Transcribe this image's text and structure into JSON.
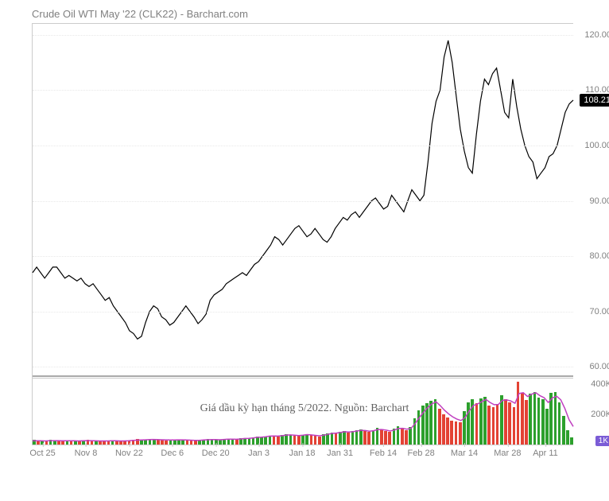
{
  "title": "Crude Oil WTI May '22 (CLK22) - Barchart.com",
  "caption": "Giá dầu kỳ hạn tháng 5/2022. Nguồn: Barchart",
  "price_chart": {
    "type": "line",
    "line_color": "#000000",
    "line_width": 1.2,
    "background_color": "#ffffff",
    "grid_color": "#e8e8e8",
    "ylim": [
      58,
      122
    ],
    "yticks": [
      60,
      70,
      80,
      90,
      100,
      110,
      120
    ],
    "current_price": 108.21,
    "current_price_badge_bg": "#000000",
    "current_price_badge_fg": "#ffffff",
    "data": [
      77,
      78,
      77,
      76,
      77,
      78,
      78,
      77,
      76,
      76.5,
      76,
      75.5,
      76,
      75,
      74.5,
      75,
      74,
      73,
      72,
      72.5,
      71,
      70,
      69,
      68,
      66.5,
      66,
      65,
      65.5,
      68,
      70,
      71,
      70.5,
      69,
      68.5,
      67.5,
      68,
      69,
      70,
      71,
      70,
      69,
      67.8,
      68.5,
      69.5,
      72,
      73,
      73.5,
      74,
      75,
      75.5,
      76,
      76.5,
      77,
      76.5,
      77.5,
      78.5,
      79,
      80,
      81,
      82,
      83.5,
      83,
      82,
      83,
      84,
      85,
      85.5,
      84.5,
      83.5,
      84,
      85,
      84,
      83,
      82.5,
      83.5,
      85,
      86,
      87,
      86.5,
      87.5,
      88,
      87,
      88,
      89,
      90,
      90.5,
      89.5,
      88.5,
      89,
      91,
      90,
      89,
      88,
      90,
      92,
      91,
      90,
      91,
      97,
      104,
      108,
      110,
      116,
      119,
      115,
      109,
      103,
      99,
      96,
      95,
      102,
      108,
      112,
      111,
      113,
      114,
      110,
      106,
      105,
      112,
      107,
      103,
      100,
      98,
      97,
      94,
      95,
      96,
      98,
      98.5,
      100,
      103,
      106,
      107.5,
      108.21
    ]
  },
  "separator_y": 58.5,
  "separator_color": "#aaaaaa",
  "volume_chart": {
    "type": "bar-with-line",
    "ylim": [
      0,
      450
    ],
    "yticks": [
      200,
      400
    ],
    "ytick_suffix": "K",
    "up_color": "#2ca02c",
    "down_color": "#e34234",
    "line_color": "#c040c0",
    "line_width": 1.5,
    "current_vol_label": "1K",
    "current_vol_badge_bg": "#7b5cd6",
    "bars": [
      {
        "v": 30,
        "c": "u"
      },
      {
        "v": 28,
        "c": "d"
      },
      {
        "v": 25,
        "c": "u"
      },
      {
        "v": 22,
        "c": "d"
      },
      {
        "v": 30,
        "c": "u"
      },
      {
        "v": 27,
        "c": "u"
      },
      {
        "v": 25,
        "c": "d"
      },
      {
        "v": 24,
        "c": "d"
      },
      {
        "v": 26,
        "c": "u"
      },
      {
        "v": 23,
        "c": "d"
      },
      {
        "v": 25,
        "c": "u"
      },
      {
        "v": 22,
        "c": "d"
      },
      {
        "v": 28,
        "c": "u"
      },
      {
        "v": 30,
        "c": "d"
      },
      {
        "v": 26,
        "c": "d"
      },
      {
        "v": 24,
        "c": "u"
      },
      {
        "v": 22,
        "c": "d"
      },
      {
        "v": 25,
        "c": "d"
      },
      {
        "v": 23,
        "c": "d"
      },
      {
        "v": 27,
        "c": "u"
      },
      {
        "v": 25,
        "c": "d"
      },
      {
        "v": 24,
        "c": "d"
      },
      {
        "v": 22,
        "c": "d"
      },
      {
        "v": 28,
        "c": "d"
      },
      {
        "v": 32,
        "c": "d"
      },
      {
        "v": 35,
        "c": "d"
      },
      {
        "v": 30,
        "c": "u"
      },
      {
        "v": 33,
        "c": "u"
      },
      {
        "v": 38,
        "c": "u"
      },
      {
        "v": 35,
        "c": "u"
      },
      {
        "v": 32,
        "c": "d"
      },
      {
        "v": 30,
        "c": "d"
      },
      {
        "v": 28,
        "c": "d"
      },
      {
        "v": 26,
        "c": "u"
      },
      {
        "v": 30,
        "c": "u"
      },
      {
        "v": 33,
        "c": "u"
      },
      {
        "v": 31,
        "c": "u"
      },
      {
        "v": 28,
        "c": "d"
      },
      {
        "v": 26,
        "c": "d"
      },
      {
        "v": 24,
        "c": "d"
      },
      {
        "v": 28,
        "c": "u"
      },
      {
        "v": 32,
        "c": "u"
      },
      {
        "v": 36,
        "c": "u"
      },
      {
        "v": 34,
        "c": "u"
      },
      {
        "v": 32,
        "c": "u"
      },
      {
        "v": 30,
        "c": "u"
      },
      {
        "v": 35,
        "c": "u"
      },
      {
        "v": 38,
        "c": "u"
      },
      {
        "v": 36,
        "c": "u"
      },
      {
        "v": 34,
        "c": "d"
      },
      {
        "v": 40,
        "c": "u"
      },
      {
        "v": 45,
        "c": "u"
      },
      {
        "v": 42,
        "c": "u"
      },
      {
        "v": 48,
        "c": "u"
      },
      {
        "v": 52,
        "c": "u"
      },
      {
        "v": 50,
        "c": "u"
      },
      {
        "v": 55,
        "c": "u"
      },
      {
        "v": 60,
        "c": "u"
      },
      {
        "v": 58,
        "c": "d"
      },
      {
        "v": 55,
        "c": "d"
      },
      {
        "v": 62,
        "c": "u"
      },
      {
        "v": 68,
        "c": "u"
      },
      {
        "v": 65,
        "c": "u"
      },
      {
        "v": 60,
        "c": "d"
      },
      {
        "v": 58,
        "c": "d"
      },
      {
        "v": 65,
        "c": "u"
      },
      {
        "v": 70,
        "c": "u"
      },
      {
        "v": 62,
        "c": "d"
      },
      {
        "v": 58,
        "c": "d"
      },
      {
        "v": 55,
        "c": "d"
      },
      {
        "v": 68,
        "c": "u"
      },
      {
        "v": 75,
        "c": "u"
      },
      {
        "v": 80,
        "c": "u"
      },
      {
        "v": 78,
        "c": "d"
      },
      {
        "v": 85,
        "c": "u"
      },
      {
        "v": 90,
        "c": "u"
      },
      {
        "v": 82,
        "c": "d"
      },
      {
        "v": 88,
        "c": "u"
      },
      {
        "v": 95,
        "c": "u"
      },
      {
        "v": 100,
        "c": "u"
      },
      {
        "v": 92,
        "c": "d"
      },
      {
        "v": 85,
        "c": "d"
      },
      {
        "v": 95,
        "c": "u"
      },
      {
        "v": 110,
        "c": "u"
      },
      {
        "v": 100,
        "c": "d"
      },
      {
        "v": 90,
        "c": "d"
      },
      {
        "v": 85,
        "c": "d"
      },
      {
        "v": 105,
        "c": "u"
      },
      {
        "v": 120,
        "c": "u"
      },
      {
        "v": 110,
        "c": "d"
      },
      {
        "v": 95,
        "c": "d"
      },
      {
        "v": 115,
        "c": "u"
      },
      {
        "v": 175,
        "c": "u"
      },
      {
        "v": 230,
        "c": "u"
      },
      {
        "v": 260,
        "c": "u"
      },
      {
        "v": 275,
        "c": "u"
      },
      {
        "v": 290,
        "c": "u"
      },
      {
        "v": 300,
        "c": "u"
      },
      {
        "v": 240,
        "c": "d"
      },
      {
        "v": 200,
        "c": "d"
      },
      {
        "v": 180,
        "c": "d"
      },
      {
        "v": 160,
        "c": "d"
      },
      {
        "v": 155,
        "c": "d"
      },
      {
        "v": 150,
        "c": "d"
      },
      {
        "v": 220,
        "c": "u"
      },
      {
        "v": 280,
        "c": "u"
      },
      {
        "v": 300,
        "c": "u"
      },
      {
        "v": 275,
        "c": "d"
      },
      {
        "v": 305,
        "c": "u"
      },
      {
        "v": 320,
        "c": "u"
      },
      {
        "v": 260,
        "c": "d"
      },
      {
        "v": 250,
        "c": "d"
      },
      {
        "v": 270,
        "c": "d"
      },
      {
        "v": 330,
        "c": "u"
      },
      {
        "v": 300,
        "c": "d"
      },
      {
        "v": 280,
        "c": "d"
      },
      {
        "v": 250,
        "c": "d"
      },
      {
        "v": 420,
        "c": "d"
      },
      {
        "v": 345,
        "c": "d"
      },
      {
        "v": 295,
        "c": "d"
      },
      {
        "v": 340,
        "c": "u"
      },
      {
        "v": 350,
        "c": "u"
      },
      {
        "v": 310,
        "c": "u"
      },
      {
        "v": 300,
        "c": "u"
      },
      {
        "v": 240,
        "c": "u"
      },
      {
        "v": 345,
        "c": "u"
      },
      {
        "v": 348,
        "c": "u"
      },
      {
        "v": 280,
        "c": "u"
      },
      {
        "v": 190,
        "c": "u"
      },
      {
        "v": 95,
        "c": "u"
      },
      {
        "v": 50,
        "c": "u"
      }
    ],
    "ma_line": [
      25,
      25,
      25,
      24,
      25,
      26,
      26,
      25,
      25,
      25,
      25,
      24,
      25,
      26,
      26,
      25,
      24,
      24,
      24,
      25,
      25,
      24,
      24,
      25,
      27,
      29,
      30,
      31,
      33,
      34,
      33,
      32,
      31,
      30,
      30,
      31,
      31,
      30,
      29,
      28,
      28,
      30,
      32,
      33,
      33,
      32,
      34,
      36,
      36,
      35,
      37,
      40,
      41,
      44,
      48,
      49,
      52,
      56,
      57,
      56,
      59,
      63,
      64,
      62,
      60,
      62,
      66,
      64,
      61,
      58,
      62,
      68,
      74,
      76,
      80,
      85,
      83,
      85,
      90,
      95,
      93,
      89,
      92,
      100,
      100,
      96,
      90,
      97,
      107,
      108,
      102,
      108,
      140,
      180,
      215,
      245,
      270,
      285,
      260,
      230,
      205,
      185,
      170,
      160,
      180,
      225,
      260,
      270,
      285,
      300,
      280,
      265,
      267,
      295,
      297,
      290,
      275,
      340,
      345,
      320,
      335,
      345,
      325,
      312,
      280,
      310,
      322,
      298,
      240,
      165,
      120
    ]
  },
  "x_axis": {
    "labels": [
      "Oct 25",
      "Nov 8",
      "Nov 22",
      "Dec 6",
      "Dec 20",
      "Jan 3",
      "Jan 18",
      "Jan 31",
      "Feb 14",
      "Feb 28",
      "Mar 14",
      "Mar 28",
      "Apr 11"
    ],
    "positions_pct": [
      2,
      10,
      18,
      26,
      34,
      42,
      50,
      57,
      65,
      72,
      80,
      88,
      95
    ]
  }
}
